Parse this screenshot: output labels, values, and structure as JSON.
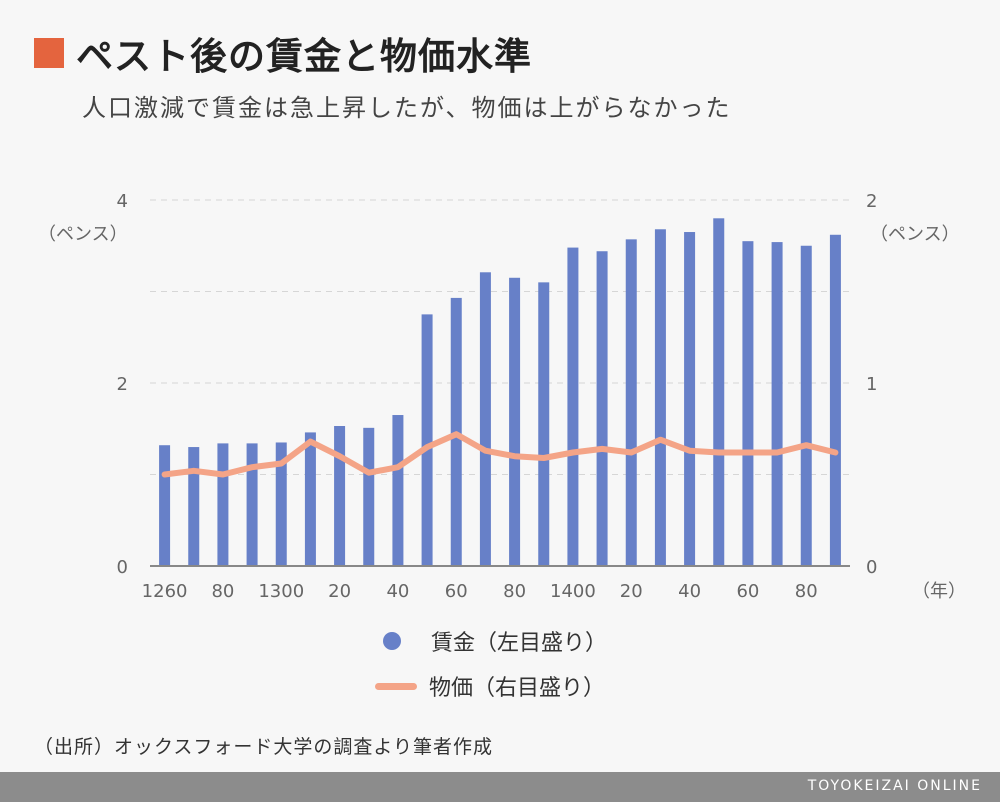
{
  "header": {
    "title": "ペスト後の賃金と物価水準",
    "subtitle": "人口激減で賃金は急上昇したが、物価は上がらなかった"
  },
  "colors": {
    "accent": "#e4643e",
    "bar": "#6780c8",
    "line": "#f4a487",
    "axis": "#888888",
    "grid": "#d6d6d6"
  },
  "chart_data": {
    "type": "bar",
    "categories": [
      "1260",
      "70",
      "80",
      "90",
      "1300",
      "10",
      "20",
      "30",
      "40",
      "50",
      "60",
      "70",
      "80",
      "90",
      "1400",
      "10",
      "20",
      "30",
      "40",
      "50",
      "60",
      "70",
      "80",
      "90"
    ],
    "tick_labels": [
      "1260",
      "80",
      "1300",
      "20",
      "40",
      "60",
      "80",
      "1400",
      "20",
      "40",
      "60",
      "80"
    ],
    "x_unit_label": "（年）",
    "left_axis": {
      "unit_label": "（ペンス）",
      "range": [
        0,
        4
      ],
      "ticks": [
        0,
        2,
        4
      ]
    },
    "right_axis": {
      "unit_label": "（ペンス）",
      "range": [
        0,
        2
      ],
      "ticks": [
        0,
        1,
        2
      ]
    },
    "grid": true,
    "series": [
      {
        "name": "賃金（左目盛り）",
        "type": "bar",
        "axis": "left",
        "values": [
          1.32,
          1.3,
          1.34,
          1.34,
          1.35,
          1.46,
          1.53,
          1.51,
          1.65,
          2.75,
          2.93,
          3.21,
          3.15,
          3.1,
          3.48,
          3.44,
          3.57,
          3.68,
          3.65,
          3.8,
          3.55,
          3.54,
          3.5,
          3.62
        ]
      },
      {
        "name": "物価（右目盛り）",
        "type": "line",
        "axis": "right",
        "values": [
          0.5,
          0.52,
          0.5,
          0.54,
          0.56,
          0.68,
          0.6,
          0.51,
          0.54,
          0.65,
          0.72,
          0.63,
          0.6,
          0.59,
          0.62,
          0.64,
          0.62,
          0.69,
          0.63,
          0.62,
          0.62,
          0.62,
          0.66,
          0.62
        ]
      }
    ],
    "legend_position": "bottom"
  },
  "source_note": "（出所）オックスフォード大学の調査より筆者作成",
  "brand": "TOYOKEIZAI ONLINE"
}
